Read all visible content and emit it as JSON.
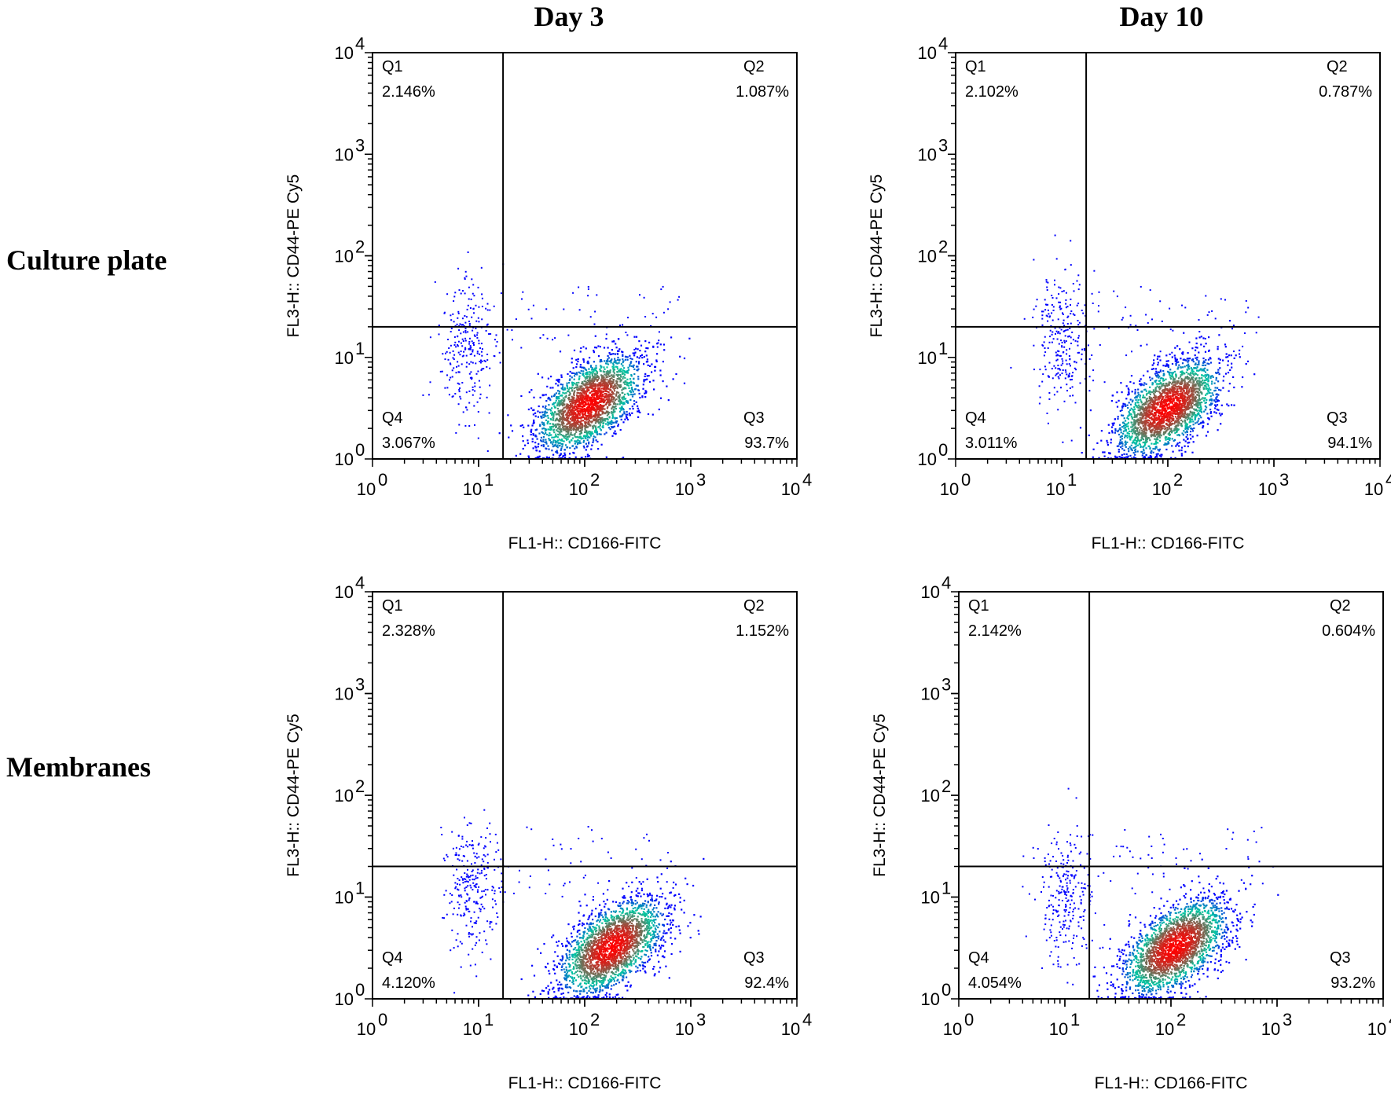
{
  "columns": [
    "Day 3",
    "Day 10"
  ],
  "rows": [
    "Culture plate",
    "Membranes"
  ],
  "chart_data": [
    {
      "type": "scatter",
      "row": "Culture plate",
      "column": "Day 3",
      "xlabel": "FL1-H:: CD166-FITC",
      "ylabel": "FL3-H:: CD44-PE Cy5",
      "xscale": "log",
      "yscale": "log",
      "xlim": [
        1,
        10000
      ],
      "ylim": [
        1,
        10000
      ],
      "gate": {
        "x": 17,
        "y": 20
      },
      "quadrants": [
        {
          "name": "Q1",
          "percent": "2.146%"
        },
        {
          "name": "Q2",
          "percent": "1.087%"
        },
        {
          "name": "Q3",
          "percent": "93.7%"
        },
        {
          "name": "Q4",
          "percent": "3.067%"
        }
      ],
      "main_population": {
        "x_center": 110,
        "y_center": 3.5
      },
      "minor_population": {
        "x_center": 8,
        "y_center": 12
      }
    },
    {
      "type": "scatter",
      "row": "Culture plate",
      "column": "Day 10",
      "xlabel": "FL1-H:: CD166-FITC",
      "ylabel": "FL3-H:: CD44-PE Cy5",
      "xscale": "log",
      "yscale": "log",
      "xlim": [
        1,
        10000
      ],
      "ylim": [
        1,
        10000
      ],
      "gate": {
        "x": 17,
        "y": 20
      },
      "quadrants": [
        {
          "name": "Q1",
          "percent": "2.102%"
        },
        {
          "name": "Q2",
          "percent": "0.787%"
        },
        {
          "name": "Q3",
          "percent": "94.1%"
        },
        {
          "name": "Q4",
          "percent": "3.011%"
        }
      ],
      "main_population": {
        "x_center": 100,
        "y_center": 3.2
      },
      "minor_population": {
        "x_center": 10,
        "y_center": 14
      }
    },
    {
      "type": "scatter",
      "row": "Membranes",
      "column": "Day 3",
      "xlabel": "FL1-H:: CD166-FITC",
      "ylabel": "FL3-H:: CD44-PE Cy5",
      "xscale": "log",
      "yscale": "log",
      "xlim": [
        1,
        10000
      ],
      "ylim": [
        1,
        10000
      ],
      "gate": {
        "x": 17,
        "y": 20
      },
      "quadrants": [
        {
          "name": "Q1",
          "percent": "2.328%"
        },
        {
          "name": "Q2",
          "percent": "1.152%"
        },
        {
          "name": "Q3",
          "percent": "92.4%"
        },
        {
          "name": "Q4",
          "percent": "4.120%"
        }
      ],
      "main_population": {
        "x_center": 180,
        "y_center": 3.2
      },
      "minor_population": {
        "x_center": 9,
        "y_center": 12
      }
    },
    {
      "type": "scatter",
      "row": "Membranes",
      "column": "Day 10",
      "xlabel": "FL1-H:: CD166-FITC",
      "ylabel": "FL3-H:: CD44-PE Cy5",
      "xscale": "log",
      "yscale": "log",
      "xlim": [
        1,
        10000
      ],
      "ylim": [
        1,
        10000
      ],
      "gate": {
        "x": 17,
        "y": 20
      },
      "quadrants": [
        {
          "name": "Q1",
          "percent": "2.142%"
        },
        {
          "name": "Q2",
          "percent": "0.604%"
        },
        {
          "name": "Q3",
          "percent": "93.2%"
        },
        {
          "name": "Q4",
          "percent": "4.054%"
        }
      ],
      "main_population": {
        "x_center": 110,
        "y_center": 3.2
      },
      "minor_population": {
        "x_center": 10,
        "y_center": 10
      }
    }
  ],
  "colors": {
    "dot_low": "#0000ff",
    "dot_mid": "#00c8a0",
    "dot_high": "#ff0000",
    "frame": "#000000"
  }
}
